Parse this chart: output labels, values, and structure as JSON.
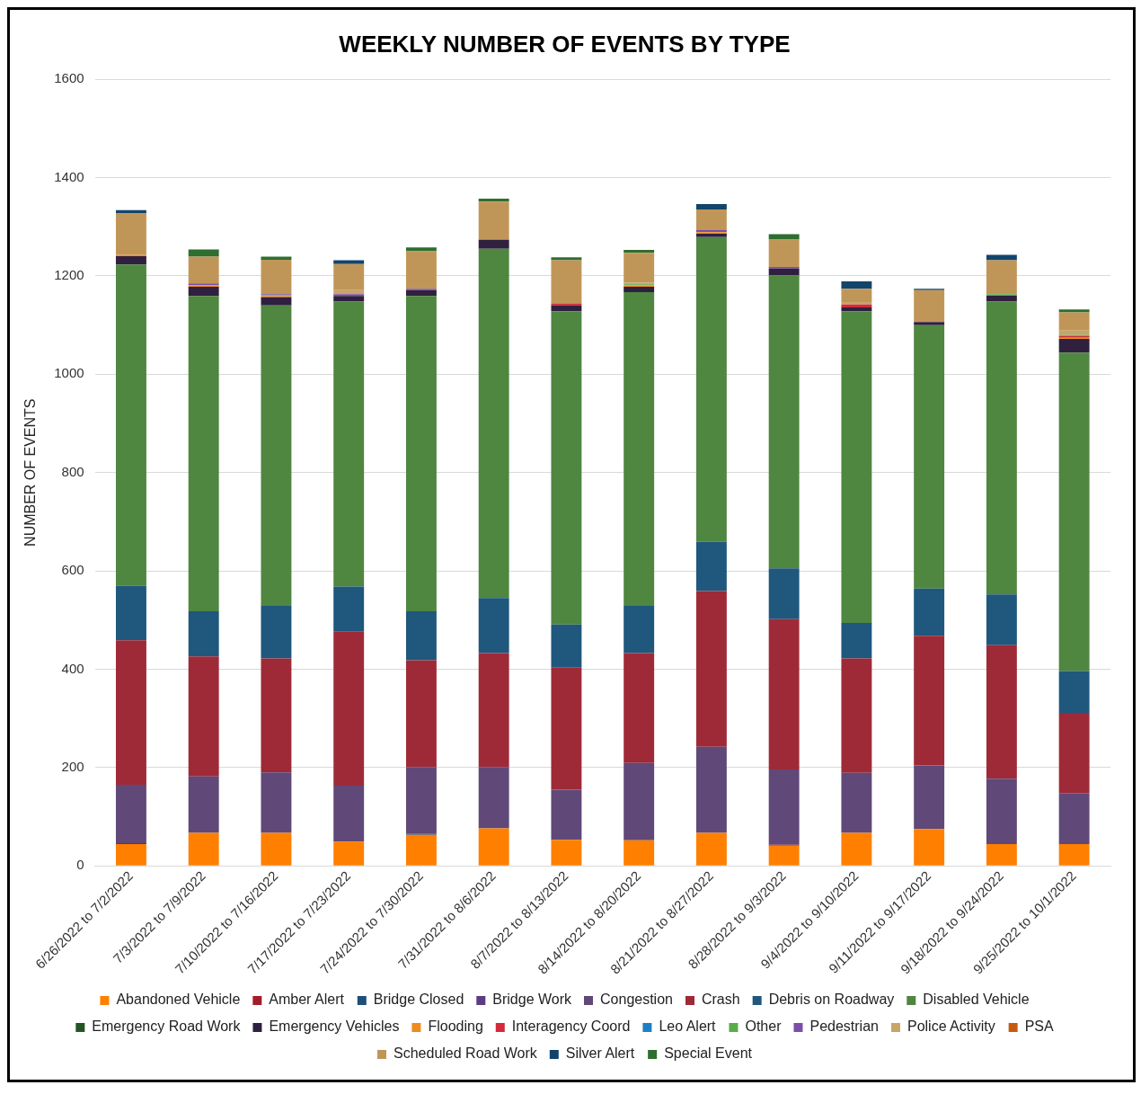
{
  "chart_data": {
    "type": "bar",
    "title": "WEEKLY NUMBER OF EVENTS BY TYPE",
    "ylabel": "NUMBER OF EVENTS",
    "stacked": true,
    "grid": "y",
    "legend": "bottom",
    "categories": [
      "6/26/2022 to 7/2/2022",
      "7/3/2022 to 7/9/2022",
      "7/10/2022 to 7/16/2022",
      "7/17/2022 to 7/23/2022",
      "7/24/2022 to 7/30/2022",
      "7/31/2022 to 8/6/2022",
      "8/7/2022 to 8/13/2022",
      "8/14/2022 to 8/20/2022",
      "8/21/2022 to 8/27/2022",
      "8/28/2022 to 9/3/2022",
      "9/4/2022 to 9/10/2022",
      "9/11/2022 to 9/17/2022",
      "9/18/2022 to 9/24/2022",
      "9/25/2022 to 10/1/2022"
    ],
    "ylim": [
      0,
      1600
    ],
    "yticks": [
      0,
      200,
      400,
      600,
      800,
      1000,
      1200,
      1400,
      1600
    ],
    "series": [
      {
        "name": "Abandoned Vehicle",
        "color": "#ff7f00",
        "values": [
          44,
          67,
          67,
          49,
          63,
          76,
          53,
          52,
          67,
          41,
          67,
          75,
          44,
          44
        ]
      },
      {
        "name": "Amber Alert",
        "color": "#a31c2a",
        "values": [
          2,
          null,
          null,
          null,
          null,
          null,
          null,
          null,
          null,
          2,
          null,
          null,
          null,
          null
        ]
      },
      {
        "name": "Bridge Closed",
        "color": "#1f4e79",
        "values": [
          null,
          null,
          null,
          null,
          2,
          null,
          null,
          null,
          null,
          null,
          null,
          null,
          null,
          null
        ]
      },
      {
        "name": "Bridge Work",
        "color": "#5b3c82",
        "values": [
          null,
          null,
          null,
          null,
          null,
          null,
          null,
          null,
          null,
          null,
          null,
          null,
          null,
          null
        ]
      },
      {
        "name": "Congestion",
        "color": "#604878",
        "values": [
          119,
          115,
          123,
          114,
          136,
          125,
          102,
          157,
          175,
          153,
          122,
          129,
          133,
          104
        ]
      },
      {
        "name": "Crash",
        "color": "#9e2a38",
        "values": [
          294,
          244,
          232,
          313,
          217,
          232,
          248,
          224,
          317,
          306,
          233,
          264,
          272,
          163
        ]
      },
      {
        "name": "Debris on Roadway",
        "color": "#1f577d",
        "values": [
          111,
          92,
          107,
          92,
          100,
          112,
          88,
          96,
          100,
          103,
          72,
          96,
          103,
          85
        ]
      },
      {
        "name": "Disabled Vehicle",
        "color": "#4f8640",
        "values": [
          653,
          641,
          611,
          580,
          641,
          710,
          637,
          638,
          620,
          596,
          634,
          536,
          596,
          648
        ]
      },
      {
        "name": "Emergency Road Work",
        "color": "#245424",
        "values": [
          null,
          null,
          null,
          null,
          null,
          null,
          null,
          null,
          null,
          null,
          null,
          null,
          null,
          null
        ]
      },
      {
        "name": "Emergency Vehicles",
        "color": "#302040",
        "values": [
          17,
          19,
          17,
          11,
          12,
          18,
          12,
          11,
          7,
          14,
          8,
          6,
          12,
          28
        ]
      },
      {
        "name": "Flooding",
        "color": "#f08a1e",
        "values": [
          3,
          3,
          2,
          null,
          null,
          null,
          null,
          3,
          3,
          null,
          null,
          null,
          null,
          2
        ]
      },
      {
        "name": "Interagency Coord",
        "color": "#d42a3c",
        "values": [
          null,
          null,
          null,
          null,
          null,
          null,
          4,
          null,
          null,
          null,
          6,
          null,
          null,
          4
        ]
      },
      {
        "name": "Leo Alert",
        "color": "#1f7fc4",
        "values": [
          null,
          null,
          null,
          null,
          null,
          null,
          null,
          null,
          null,
          null,
          null,
          null,
          null,
          null
        ]
      },
      {
        "name": "Other",
        "color": "#5aac4a",
        "values": [
          null,
          null,
          2,
          null,
          null,
          2,
          null,
          2,
          null,
          null,
          null,
          null,
          3,
          2
        ]
      },
      {
        "name": "Pedestrian",
        "color": "#7b4fa8",
        "values": [
          null,
          4,
          2,
          4,
          3,
          null,
          null,
          null,
          4,
          3,
          null,
          null,
          null,
          null
        ]
      },
      {
        "name": "Police Activity",
        "color": "#c8a468",
        "values": [
          null,
          null,
          null,
          8,
          null,
          null,
          null,
          3,
          null,
          null,
          5,
          null,
          null,
          9
        ]
      },
      {
        "name": "PSA",
        "color": "#c65a10",
        "values": [
          null,
          null,
          null,
          null,
          null,
          null,
          null,
          null,
          null,
          null,
          null,
          null,
          null,
          null
        ]
      },
      {
        "name": "Scheduled Road Work",
        "color": "#c09658",
        "values": [
          85,
          54,
          70,
          53,
          76,
          76,
          88,
          61,
          42,
          56,
          27,
          65,
          69,
          37
        ]
      },
      {
        "name": "Silver Alert",
        "color": "#12456b",
        "values": [
          6,
          null,
          null,
          8,
          null,
          null,
          null,
          null,
          11,
          null,
          15,
          3,
          11,
          null
        ]
      },
      {
        "name": "Special Event",
        "color": "#2e6e30",
        "values": [
          null,
          15,
          6,
          null,
          8,
          6,
          6,
          6,
          null,
          11,
          null,
          null,
          null,
          6
        ]
      }
    ]
  }
}
